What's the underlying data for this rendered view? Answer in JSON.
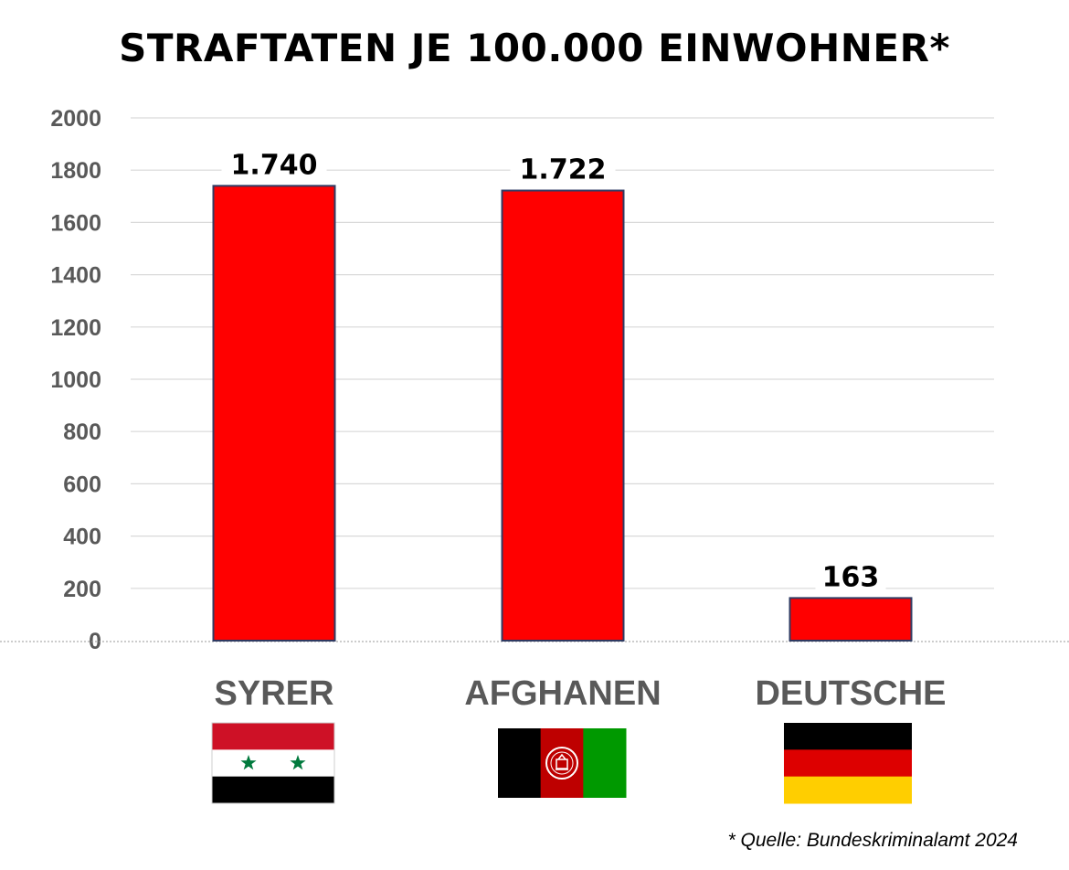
{
  "chart_data": {
    "type": "bar",
    "title": "STRAFTATEN JE 100.000 EINWOHNER*",
    "categories": [
      "SYRER",
      "AFGHANEN",
      "DEUTSCHE"
    ],
    "values": [
      1740,
      1722,
      163
    ],
    "data_labels": [
      "1.740",
      "1.722",
      "163"
    ],
    "ylim": [
      0,
      2000
    ],
    "yticks": [
      0,
      200,
      400,
      600,
      800,
      1000,
      1200,
      1400,
      1600,
      1800,
      2000
    ],
    "grid": true,
    "legend": "none",
    "bar_color": "#ff0000",
    "bar_edge_color": "#2f3b63",
    "source_note": "* Quelle: Bundeskriminalamt 2024"
  },
  "flags": [
    {
      "name": "syria-flag",
      "stripes": [
        "#ce1126",
        "#ffffff",
        "#000000"
      ],
      "emblem": "two-green-stars",
      "emblem_color": "#007a3d"
    },
    {
      "name": "afghanistan-flag",
      "stripes": [
        "#000000",
        "#be0000",
        "#009900"
      ],
      "emblem": "national-emblem",
      "emblem_color": "#ffffff"
    },
    {
      "name": "germany-flag",
      "stripes": [
        "#000000",
        "#dd0000",
        "#ffce00"
      ]
    }
  ]
}
